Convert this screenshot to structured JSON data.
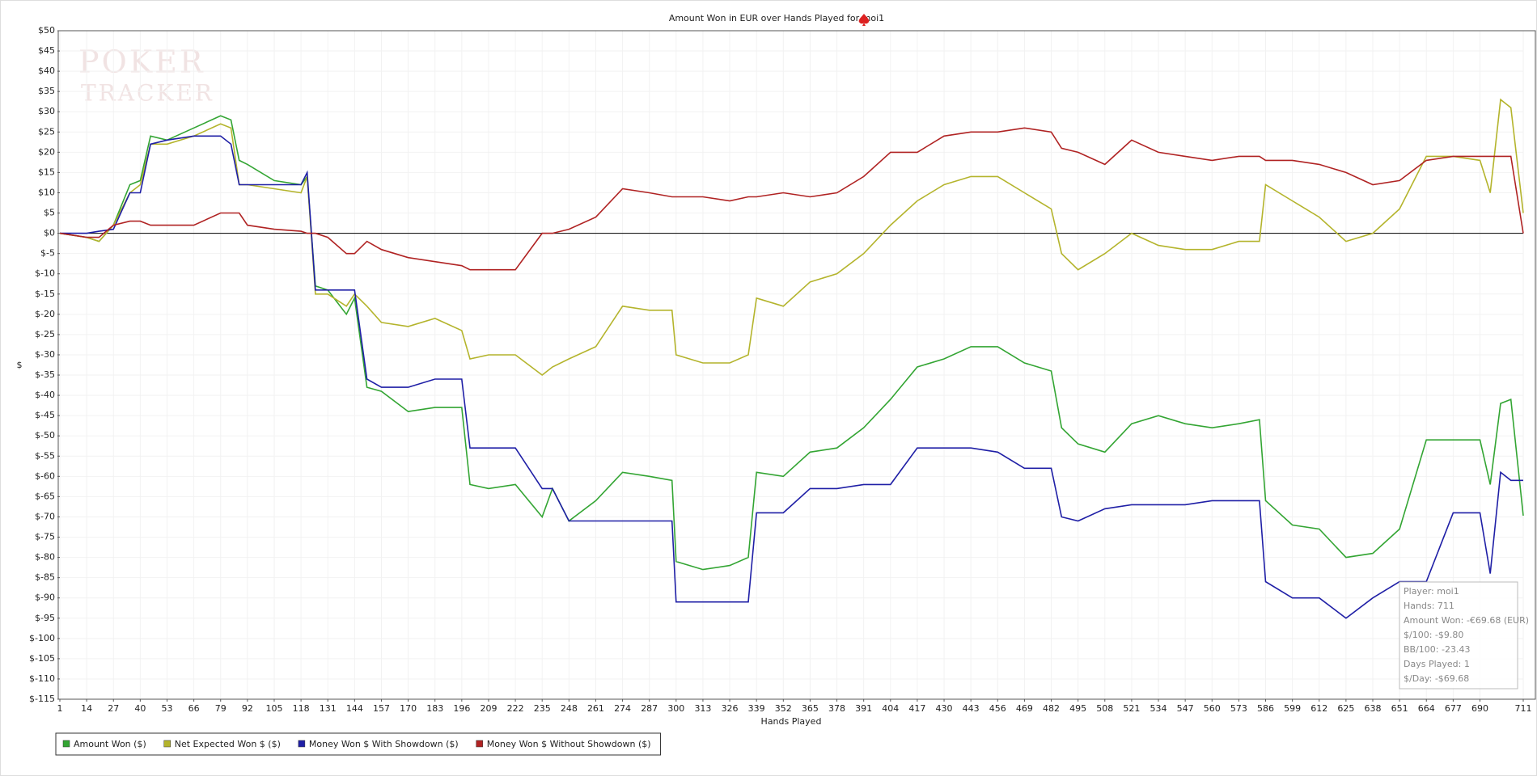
{
  "chart_data": {
    "type": "line",
    "title": "Amount Won in EUR over Hands Played for moi1",
    "x_label": "Hands Played",
    "y_label": "$",
    "watermark": [
      "POKER",
      "TRACKER"
    ],
    "info_box": [
      "Player: moi1",
      "Hands: 711",
      "Amount Won: -€69.68 (EUR)",
      "$/100: -$9.80",
      "BB/100: -23.43",
      "Days Played: 1",
      "$/Day: -$69.68"
    ],
    "grid": true,
    "xlim": [
      1,
      711
    ],
    "xticks": [
      1,
      14,
      27,
      40,
      53,
      66,
      79,
      92,
      105,
      118,
      131,
      144,
      157,
      170,
      183,
      196,
      209,
      222,
      235,
      248,
      261,
      274,
      287,
      300,
      313,
      326,
      339,
      352,
      365,
      378,
      391,
      404,
      417,
      430,
      443,
      456,
      469,
      482,
      495,
      508,
      521,
      534,
      547,
      560,
      573,
      586,
      599,
      612,
      625,
      638,
      651,
      664,
      677,
      690,
      711
    ],
    "ylim": [
      -115,
      50
    ],
    "yticks": [
      {
        "value": 50,
        "label": "$50"
      },
      {
        "value": 45,
        "label": "$45"
      },
      {
        "value": 40,
        "label": "$40"
      },
      {
        "value": 35,
        "label": "$35"
      },
      {
        "value": 30,
        "label": "$30"
      },
      {
        "value": 25,
        "label": "$25"
      },
      {
        "value": 20,
        "label": "$20"
      },
      {
        "value": 15,
        "label": "$15"
      },
      {
        "value": 10,
        "label": "$10"
      },
      {
        "value": 5,
        "label": "$5"
      },
      {
        "value": 0,
        "label": "$0"
      },
      {
        "value": -5,
        "label": "$-5"
      },
      {
        "value": -10,
        "label": "$-10"
      },
      {
        "value": -15,
        "label": "$-15"
      },
      {
        "value": -20,
        "label": "$-20"
      },
      {
        "value": -25,
        "label": "$-25"
      },
      {
        "value": -30,
        "label": "$-30"
      },
      {
        "value": -35,
        "label": "$-35"
      },
      {
        "value": -40,
        "label": "$-40"
      },
      {
        "value": -45,
        "label": "$-45"
      },
      {
        "value": -50,
        "label": "$-50"
      },
      {
        "value": -55,
        "label": "$-55"
      },
      {
        "value": -60,
        "label": "$-60"
      },
      {
        "value": -65,
        "label": "$-65"
      },
      {
        "value": -70,
        "label": "$-70"
      },
      {
        "value": -75,
        "label": "$-75"
      },
      {
        "value": -80,
        "label": "$-80"
      },
      {
        "value": -85,
        "label": "$-85"
      },
      {
        "value": -90,
        "label": "$-90"
      },
      {
        "value": -95,
        "label": "$-95"
      },
      {
        "value": -100,
        "label": "$-100"
      },
      {
        "value": -105,
        "label": "$-105"
      },
      {
        "value": -110,
        "label": "$-110"
      },
      {
        "value": -115,
        "label": "$-115"
      }
    ],
    "x": [
      1,
      14,
      20,
      27,
      35,
      40,
      45,
      53,
      66,
      79,
      84,
      88,
      92,
      105,
      118,
      121,
      125,
      131,
      140,
      144,
      150,
      157,
      170,
      183,
      196,
      200,
      209,
      222,
      235,
      240,
      248,
      261,
      274,
      287,
      298,
      300,
      313,
      326,
      335,
      339,
      352,
      365,
      378,
      391,
      404,
      417,
      430,
      443,
      456,
      469,
      482,
      487,
      495,
      508,
      521,
      534,
      547,
      560,
      573,
      583,
      586,
      599,
      612,
      625,
      638,
      651,
      664,
      677,
      690,
      695,
      700,
      705,
      711
    ],
    "series": [
      {
        "name": "Amount Won ($)",
        "color": "#33a533",
        "values": [
          0,
          -1,
          -2,
          2,
          12,
          13,
          24,
          23,
          26,
          29,
          28,
          18,
          17,
          13,
          12,
          14,
          -13,
          -14,
          -20,
          -16,
          -38,
          -39,
          -44,
          -43,
          -43,
          -62,
          -63,
          -62,
          -70,
          -63,
          -71,
          -66,
          -59,
          -60,
          -61,
          -81,
          -83,
          -82,
          -80,
          -59,
          -60,
          -54,
          -53,
          -48,
          -41,
          -33,
          -31,
          -28,
          -28,
          -32,
          -34,
          -48,
          -52,
          -54,
          -47,
          -45,
          -47,
          -48,
          -47,
          -46,
          -66,
          -72,
          -73,
          -80,
          -79,
          -73,
          -51,
          -51,
          -51,
          -62,
          -42,
          -41,
          -69.68
        ]
      },
      {
        "name": "Net Expected Won $ ($)",
        "color": "#b4b42c",
        "values": [
          0,
          -1,
          -2,
          2,
          10,
          12,
          22,
          22,
          24,
          27,
          26,
          12,
          12,
          11,
          10,
          14,
          -15,
          -15,
          -18,
          -15,
          -18,
          -22,
          -23,
          -21,
          -24,
          -31,
          -30,
          -30,
          -35,
          -33,
          -31,
          -28,
          -18,
          -19,
          -19,
          -30,
          -32,
          -32,
          -30,
          -16,
          -18,
          -12,
          -10,
          -5,
          2,
          8,
          12,
          14,
          14,
          10,
          6,
          -5,
          -9,
          -5,
          0,
          -3,
          -4,
          -4,
          -2,
          -2,
          12,
          8,
          4,
          -2,
          0,
          6,
          19,
          19,
          18,
          10,
          33,
          31,
          5
        ]
      },
      {
        "name": "Money Won $ With Showdown ($)",
        "color": "#1f1fa6",
        "values": [
          0,
          0,
          0.5,
          1,
          10,
          10,
          22,
          23,
          24,
          24,
          22,
          12,
          12,
          12,
          12,
          15,
          -14,
          -14,
          -14,
          -14,
          -36,
          -38,
          -38,
          -36,
          -36,
          -53,
          -53,
          -53,
          -63,
          -63,
          -71,
          -71,
          -71,
          -71,
          -71,
          -91,
          -91,
          -91,
          -91,
          -69,
          -69,
          -63,
          -63,
          -62,
          -62,
          -53,
          -53,
          -53,
          -54,
          -58,
          -58,
          -70,
          -71,
          -68,
          -67,
          -67,
          -67,
          -66,
          -66,
          -66,
          -86,
          -90,
          -90,
          -95,
          -90,
          -86,
          -86,
          -69,
          -69,
          -84,
          -59,
          -61,
          -61
        ]
      },
      {
        "name": "Money Won $ Without Showdown ($)",
        "color": "#b02323",
        "values": [
          0,
          -1,
          -1,
          2,
          3,
          3,
          2,
          2,
          2,
          5,
          5,
          5,
          2,
          1,
          0.5,
          0,
          0,
          -1,
          -5,
          -5,
          -2,
          -4,
          -6,
          -7,
          -8,
          -9,
          -9,
          -9,
          0,
          0,
          1,
          4,
          11,
          10,
          9,
          9,
          9,
          8,
          9,
          9,
          10,
          9,
          10,
          14,
          20,
          20,
          24,
          25,
          25,
          26,
          25,
          21,
          20,
          17,
          23,
          20,
          19,
          18,
          19,
          19,
          18,
          18,
          17,
          15,
          12,
          13,
          18,
          19,
          19,
          19,
          19,
          19,
          0
        ]
      }
    ]
  }
}
